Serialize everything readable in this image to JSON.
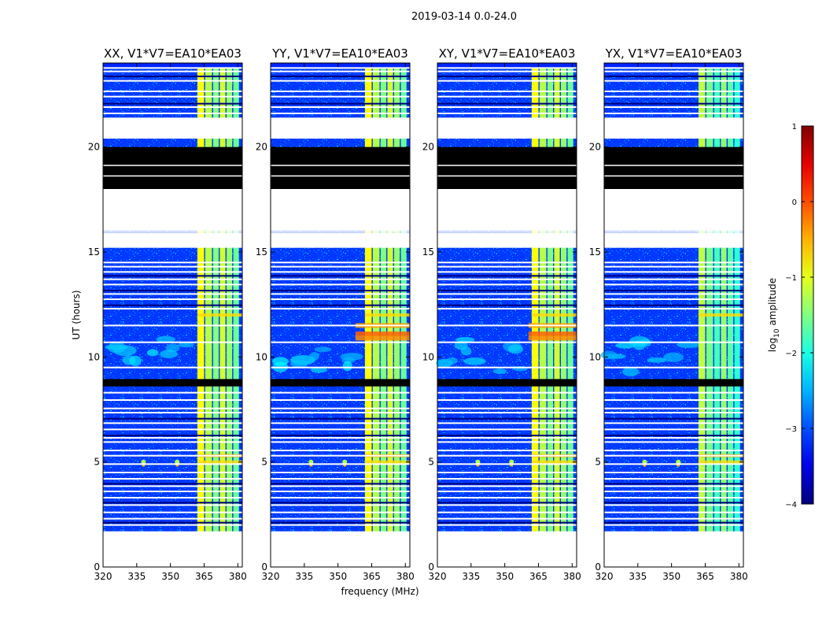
{
  "figure": {
    "suptitle": "2019-03-14 0.0-24.0"
  },
  "chart_data": {
    "type": "heatmap",
    "title": "2019-03-14 0.0-24.0",
    "xlabel": "frequency (MHz)",
    "ylabel": "UT (hours)",
    "xlim": [
      320,
      382
    ],
    "ylim": [
      0,
      24
    ],
    "xticks": [
      320,
      335,
      350,
      365,
      380
    ],
    "yticks": [
      0,
      5,
      10,
      15,
      20
    ],
    "panels": [
      {
        "title": "XX, V1*V7=EA10*EA03"
      },
      {
        "title": "YY, V1*V7=EA10*EA03"
      },
      {
        "title": "XY, V1*V7=EA10*EA03"
      },
      {
        "title": "YX, V1*V7=EA10*EA03"
      }
    ],
    "colorbar": {
      "label": "log10 amplitude",
      "label_base": "log",
      "label_sub": "10",
      "label_rest": " amplitude",
      "range": [
        -4,
        1
      ],
      "ticks": [
        1,
        0,
        -1,
        -2,
        -3,
        -4
      ],
      "cmap": "jet"
    },
    "blank_intervals_hours": [
      [
        0,
        1.7
      ],
      [
        16,
        18
      ],
      [
        15.2,
        15.9
      ],
      [
        20.4,
        21.4
      ]
    ],
    "flagged_black_hours": [
      [
        18.0,
        20.0
      ],
      [
        8.6,
        8.95
      ]
    ],
    "bright_band_mhz": [
      362,
      382
    ]
  }
}
